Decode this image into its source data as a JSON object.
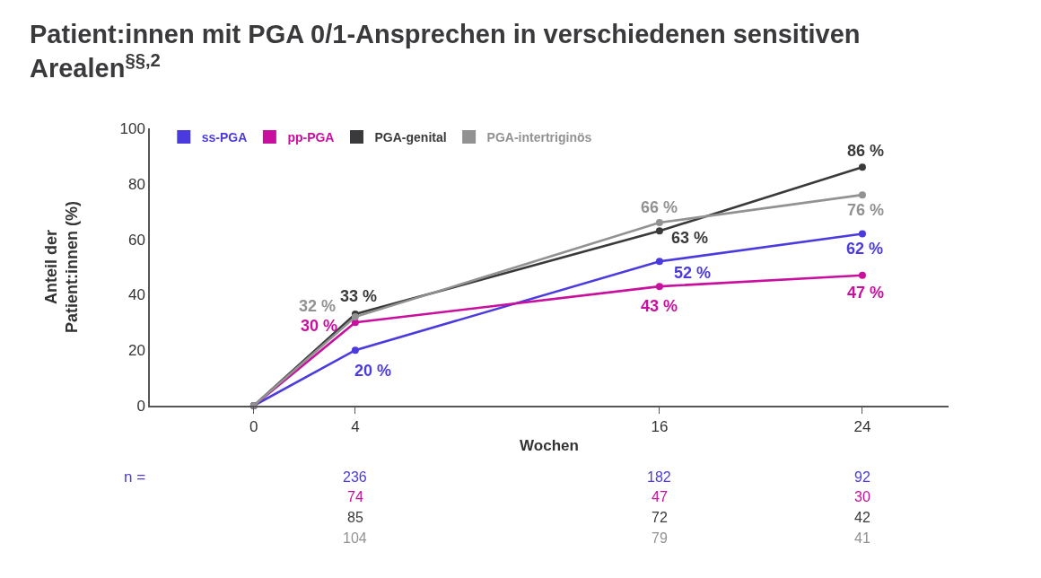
{
  "chart_data": {
    "type": "line",
    "title": "Patient:innen mit PGA 0/1-Ansprechen in verschiedenen sensitiven Arealen$^{§§,2}$",
    "xlabel": "Wochen",
    "ylabel": "Anteil der Patient:innen (%)",
    "x": [
      0,
      4,
      16,
      24
    ],
    "xlim": [
      -4.1,
      27.4
    ],
    "xticks": [
      0,
      4,
      16,
      24
    ],
    "ylim": [
      0,
      100
    ],
    "yticks": [
      0,
      20,
      40,
      60,
      80,
      100
    ],
    "legend": "top left",
    "marker": "circle",
    "line_style": "solid",
    "series": [
      {
        "name": "ss-PGA",
        "color": "#4b3bdf",
        "values": [
          0,
          20,
          52,
          62
        ],
        "value_labels": [
          null,
          "20 %",
          "52 %",
          "62 %"
        ]
      },
      {
        "name": "pp-PGA",
        "color": "#c90f9e",
        "values": [
          0,
          30,
          43,
          47
        ],
        "value_labels": [
          null,
          "30 %",
          "43 %",
          "47 %"
        ]
      },
      {
        "name": "PGA-genital",
        "color": "#3a3a3c",
        "values": [
          0,
          33,
          63,
          86
        ],
        "value_labels": [
          null,
          "33 %",
          "63 %",
          "86 %"
        ]
      },
      {
        "name": "PGA-intertriginös",
        "color": "#929292",
        "values": [
          0,
          32,
          66,
          76
        ],
        "value_labels": [
          null,
          "32 %",
          "66 %",
          "76 %"
        ]
      }
    ],
    "annotations": [
      "n =",
      "236",
      "182",
      "92",
      "74",
      "47",
      "30",
      "85",
      "72",
      "42",
      "104",
      "79",
      "41"
    ]
  }
}
